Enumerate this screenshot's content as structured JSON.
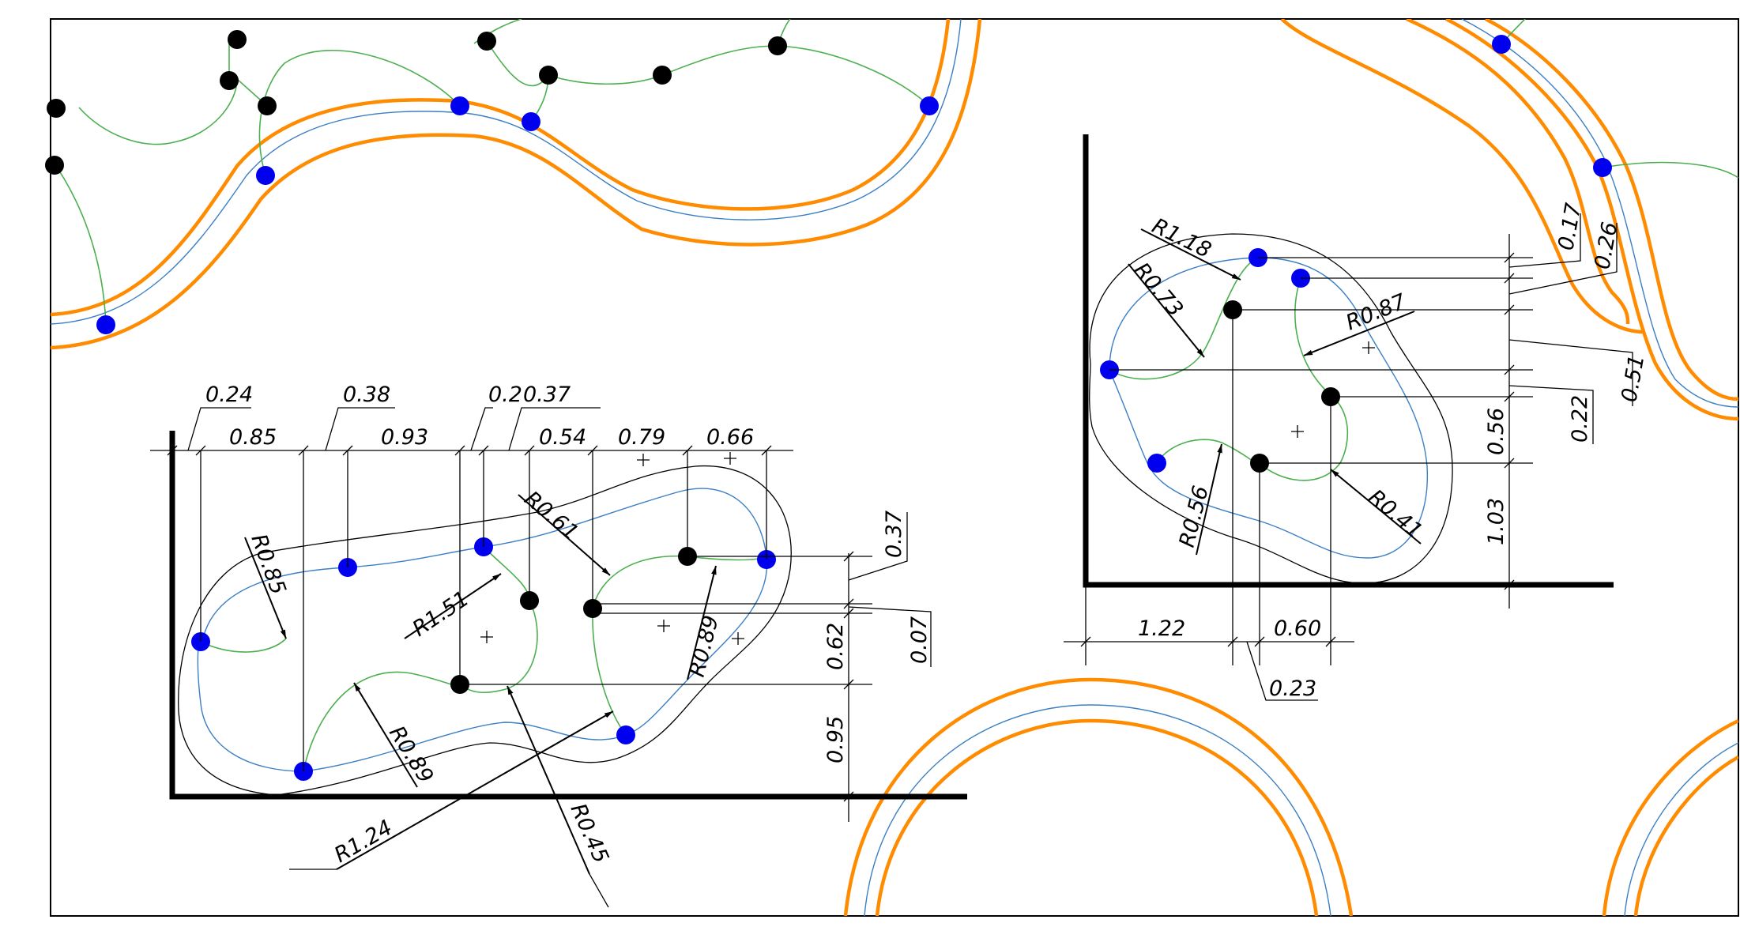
{
  "drawing": {
    "colors": {
      "offset_path": "#ff8c00",
      "center_path": "#3b7fc4",
      "construction_arc": "#4caf50",
      "tangent_point": "#0000ee",
      "center_point": "#000000"
    },
    "left_detail": {
      "horizontal_dims": [
        "0.24",
        "0.85",
        "0.38",
        "0.93",
        "0.2",
        "0.37",
        "0.54",
        "0.79",
        "0.66"
      ],
      "vertical_dims": [
        "0.37",
        "0.07",
        "0.62",
        "0.95"
      ],
      "radii": [
        "R0.85",
        "R0.61",
        "R1.51",
        "R0.89",
        "R0.89",
        "R1.24",
        "R0.45"
      ]
    },
    "right_detail": {
      "horizontal_dims": [
        "1.22",
        "0.60",
        "0.23"
      ],
      "vertical_dims": [
        "0.17",
        "0.26",
        "0.51",
        "0.22",
        "0.56",
        "1.03"
      ],
      "radii": [
        "R1.18",
        "R0.73",
        "R0.87",
        "R0.56",
        "R0.41"
      ]
    }
  }
}
